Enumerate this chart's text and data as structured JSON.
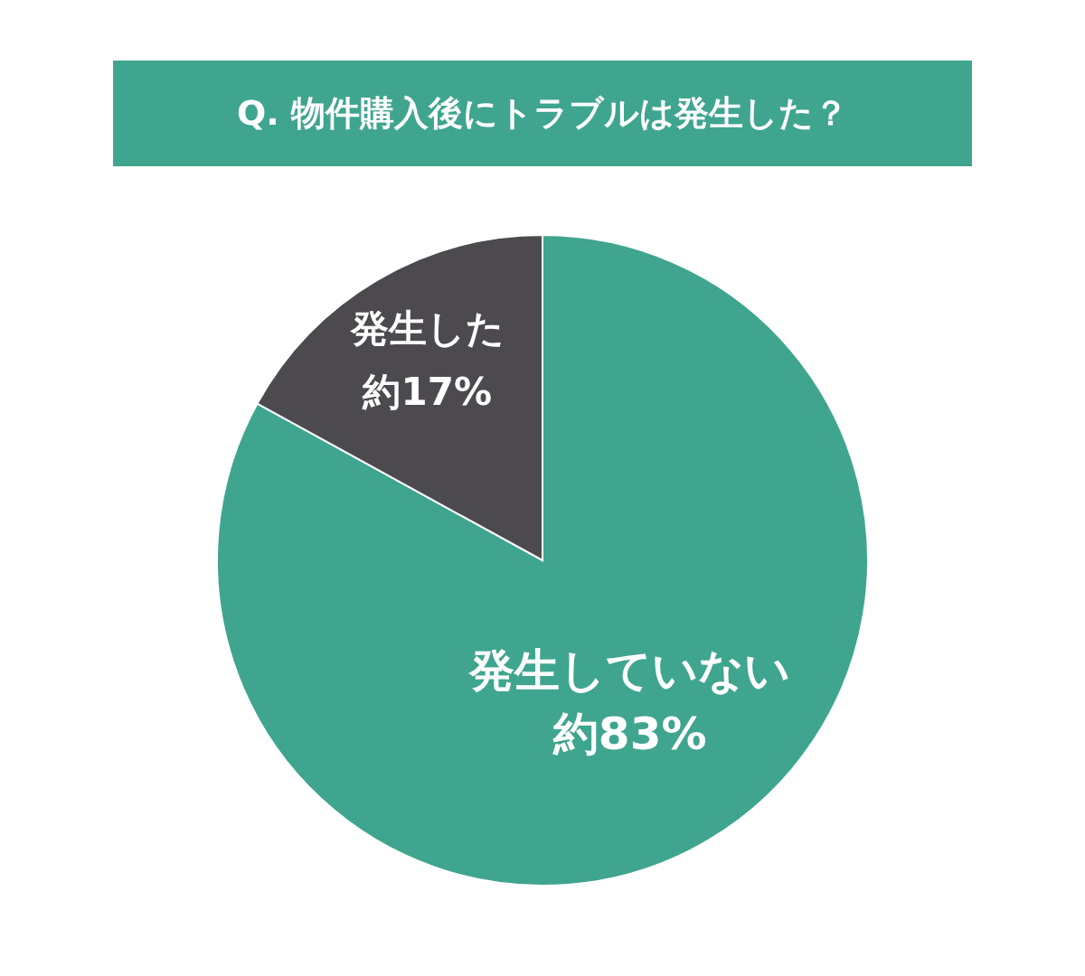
{
  "chart_data": {
    "type": "pie",
    "title": "Q. 物件購入後にトラブルは発生した？",
    "categories": [
      "発生していない",
      "発生した"
    ],
    "values": [
      83,
      17
    ],
    "colors": [
      "#3fa58f",
      "#4d4a4f"
    ],
    "value_labels": [
      "約83%",
      "約17%"
    ]
  }
}
